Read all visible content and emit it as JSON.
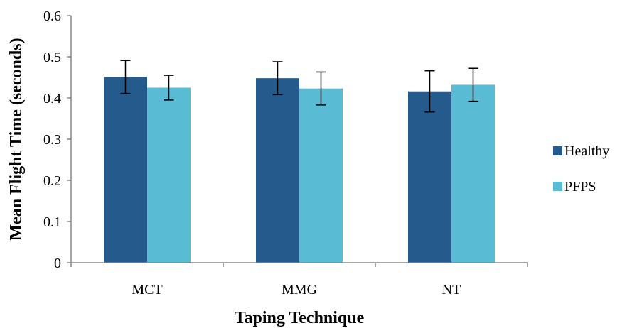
{
  "chart_data": {
    "type": "bar",
    "title": "",
    "xlabel": "Taping Technique",
    "ylabel": "Mean Flight Time (seconds)",
    "categories": [
      "MCT",
      "MMG",
      "NT"
    ],
    "ylim": [
      0,
      0.6
    ],
    "yticks": [
      "0",
      "0.1",
      "0.2",
      "0.3",
      "0.4",
      "0.5",
      "0.6"
    ],
    "grid": false,
    "legend_position": "right",
    "series": [
      {
        "name": "Healthy",
        "color": "#255A8C",
        "values": [
          0.451,
          0.448,
          0.416
        ],
        "error": [
          0.04,
          0.04,
          0.05
        ]
      },
      {
        "name": "PFPS",
        "color": "#5ABCD4",
        "values": [
          0.425,
          0.423,
          0.432
        ],
        "error": [
          0.03,
          0.04,
          0.04
        ]
      }
    ]
  }
}
